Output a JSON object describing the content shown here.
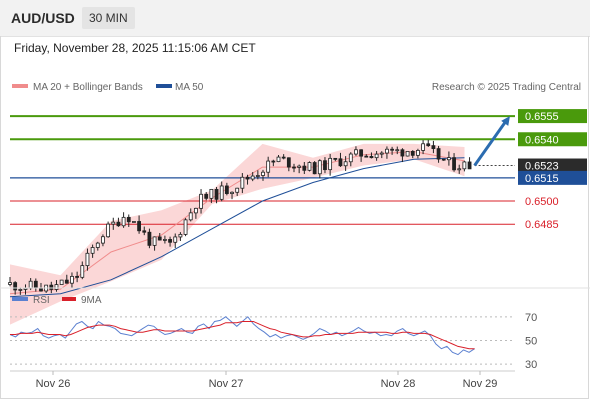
{
  "header": {
    "symbol": "AUD/USD",
    "timeframe": "30 MIN"
  },
  "timestamp": "Friday, November 28, 2025 11:15:06 AM CET",
  "legend": {
    "ma20": "MA 20 + Bollinger Bands",
    "ma50": "MA 50",
    "copyright": "Research © 2025 Trading Central",
    "rsi": "RSI",
    "rsi_ma": "9MA"
  },
  "colors": {
    "green_level": "#4a9a0c",
    "blue_level": "#1f4f98",
    "red_level": "#d9202a",
    "bollinger_fill": "#fbd7d7",
    "ma20": "#f08c8c",
    "ma50": "#1f4f98",
    "candle": "#222222",
    "forecast_arrow": "#2b6cb0",
    "rsi": "#5b80d0",
    "rsi_ma": "#d9202a"
  },
  "chart_data": [
    {
      "type": "candlestick",
      "title": "AUD/USD",
      "timeframe": "30 MIN",
      "x_tick_labels": [
        "Nov 26",
        "Nov 27",
        "Nov 28",
        "Nov 29"
      ],
      "ylim": [
        0.6445,
        0.6568
      ],
      "levels": [
        {
          "value": 0.6555,
          "label": "0.6555",
          "kind": "resistance"
        },
        {
          "value": 0.654,
          "label": "0.6540",
          "kind": "resistance"
        },
        {
          "value": 0.6523,
          "label": "0.6523",
          "kind": "last"
        },
        {
          "value": 0.6515,
          "label": "0.6515",
          "kind": "pivot"
        },
        {
          "value": 0.65,
          "label": "0.6500",
          "kind": "support"
        },
        {
          "value": 0.6485,
          "label": "0.6485",
          "kind": "support"
        }
      ],
      "close_path": [
        {
          "x": 0.0,
          "y": 0.6446
        },
        {
          "x": 0.08,
          "y": 0.6443
        },
        {
          "x": 0.13,
          "y": 0.645
        },
        {
          "x": 0.18,
          "y": 0.6478
        },
        {
          "x": 0.23,
          "y": 0.6492
        },
        {
          "x": 0.28,
          "y": 0.6473
        },
        {
          "x": 0.32,
          "y": 0.6472
        },
        {
          "x": 0.37,
          "y": 0.65
        },
        {
          "x": 0.44,
          "y": 0.6509
        },
        {
          "x": 0.53,
          "y": 0.6527
        },
        {
          "x": 0.6,
          "y": 0.6521
        },
        {
          "x": 0.7,
          "y": 0.6531
        },
        {
          "x": 0.76,
          "y": 0.6532
        },
        {
          "x": 0.82,
          "y": 0.6534
        },
        {
          "x": 0.87,
          "y": 0.6524
        },
        {
          "x": 0.91,
          "y": 0.6523
        }
      ],
      "bollinger_upper_path": [
        {
          "x": 0.0,
          "y": 0.6459
        },
        {
          "x": 0.1,
          "y": 0.6452
        },
        {
          "x": 0.2,
          "y": 0.6487
        },
        {
          "x": 0.3,
          "y": 0.6494
        },
        {
          "x": 0.4,
          "y": 0.6507
        },
        {
          "x": 0.5,
          "y": 0.6537
        },
        {
          "x": 0.6,
          "y": 0.6528
        },
        {
          "x": 0.7,
          "y": 0.6537
        },
        {
          "x": 0.8,
          "y": 0.6537
        },
        {
          "x": 0.9,
          "y": 0.6535
        }
      ],
      "bollinger_lower_path": [
        {
          "x": 0.0,
          "y": 0.642
        },
        {
          "x": 0.1,
          "y": 0.6435
        },
        {
          "x": 0.2,
          "y": 0.6448
        },
        {
          "x": 0.3,
          "y": 0.6462
        },
        {
          "x": 0.4,
          "y": 0.6498
        },
        {
          "x": 0.5,
          "y": 0.6508
        },
        {
          "x": 0.6,
          "y": 0.6515
        },
        {
          "x": 0.7,
          "y": 0.6523
        },
        {
          "x": 0.8,
          "y": 0.6527
        },
        {
          "x": 0.9,
          "y": 0.6516
        }
      ],
      "ma20_path": [
        {
          "x": 0.0,
          "y": 0.644
        },
        {
          "x": 0.1,
          "y": 0.6443
        },
        {
          "x": 0.2,
          "y": 0.6467
        },
        {
          "x": 0.3,
          "y": 0.6478
        },
        {
          "x": 0.4,
          "y": 0.6502
        },
        {
          "x": 0.5,
          "y": 0.6522
        },
        {
          "x": 0.6,
          "y": 0.6522
        },
        {
          "x": 0.7,
          "y": 0.653
        },
        {
          "x": 0.8,
          "y": 0.6532
        },
        {
          "x": 0.9,
          "y": 0.6526
        }
      ],
      "ma50_path": [
        {
          "x": 0.0,
          "y": 0.6438
        },
        {
          "x": 0.1,
          "y": 0.644
        },
        {
          "x": 0.2,
          "y": 0.6449
        },
        {
          "x": 0.3,
          "y": 0.6464
        },
        {
          "x": 0.4,
          "y": 0.6482
        },
        {
          "x": 0.5,
          "y": 0.65
        },
        {
          "x": 0.6,
          "y": 0.6512
        },
        {
          "x": 0.7,
          "y": 0.6521
        },
        {
          "x": 0.8,
          "y": 0.6527
        },
        {
          "x": 0.9,
          "y": 0.6528
        }
      ],
      "forecast": {
        "from": {
          "x": 0.92,
          "y": 0.6523
        },
        "to": {
          "x": 0.99,
          "y": 0.6555
        }
      }
    },
    {
      "type": "line",
      "title": "RSI",
      "ylim": [
        25,
        80
      ],
      "y_ticks": [
        70,
        50,
        30
      ],
      "series": [
        {
          "name": "RSI",
          "values": [
            55,
            53,
            57,
            56,
            57,
            60,
            54,
            52,
            54,
            55,
            52,
            58,
            64,
            66,
            62,
            60,
            66,
            63,
            62,
            60,
            56,
            55,
            54,
            57,
            60,
            63,
            62,
            58,
            55,
            56,
            58,
            60,
            57,
            56,
            62,
            64,
            60,
            66,
            67,
            70,
            66,
            62,
            66,
            70,
            64,
            60,
            57,
            53,
            55,
            52,
            54,
            55,
            53,
            51,
            53,
            56,
            60,
            58,
            55,
            57,
            54,
            56,
            58,
            61,
            58,
            56,
            57,
            54,
            55,
            54,
            58,
            60,
            56,
            54,
            56,
            58,
            54,
            47,
            43,
            45,
            40,
            38,
            42,
            40,
            43
          ]
        },
        {
          "name": "9MA",
          "values": [
            55,
            55,
            56,
            56,
            56,
            57,
            56,
            55,
            55,
            55,
            54,
            55,
            57,
            59,
            61,
            62,
            63,
            63,
            63,
            62,
            60,
            59,
            58,
            57,
            57,
            58,
            59,
            59,
            58,
            58,
            58,
            58,
            58,
            58,
            59,
            60,
            61,
            62,
            63,
            65,
            65,
            65,
            66,
            66,
            66,
            64,
            62,
            60,
            59,
            57,
            56,
            55,
            54,
            53,
            53,
            54,
            54,
            55,
            55,
            56,
            56,
            56,
            56,
            57,
            57,
            57,
            57,
            57,
            57,
            56,
            56,
            57,
            57,
            56,
            56,
            56,
            55,
            53,
            51,
            49,
            47,
            45,
            44,
            43,
            43
          ]
        }
      ]
    }
  ]
}
